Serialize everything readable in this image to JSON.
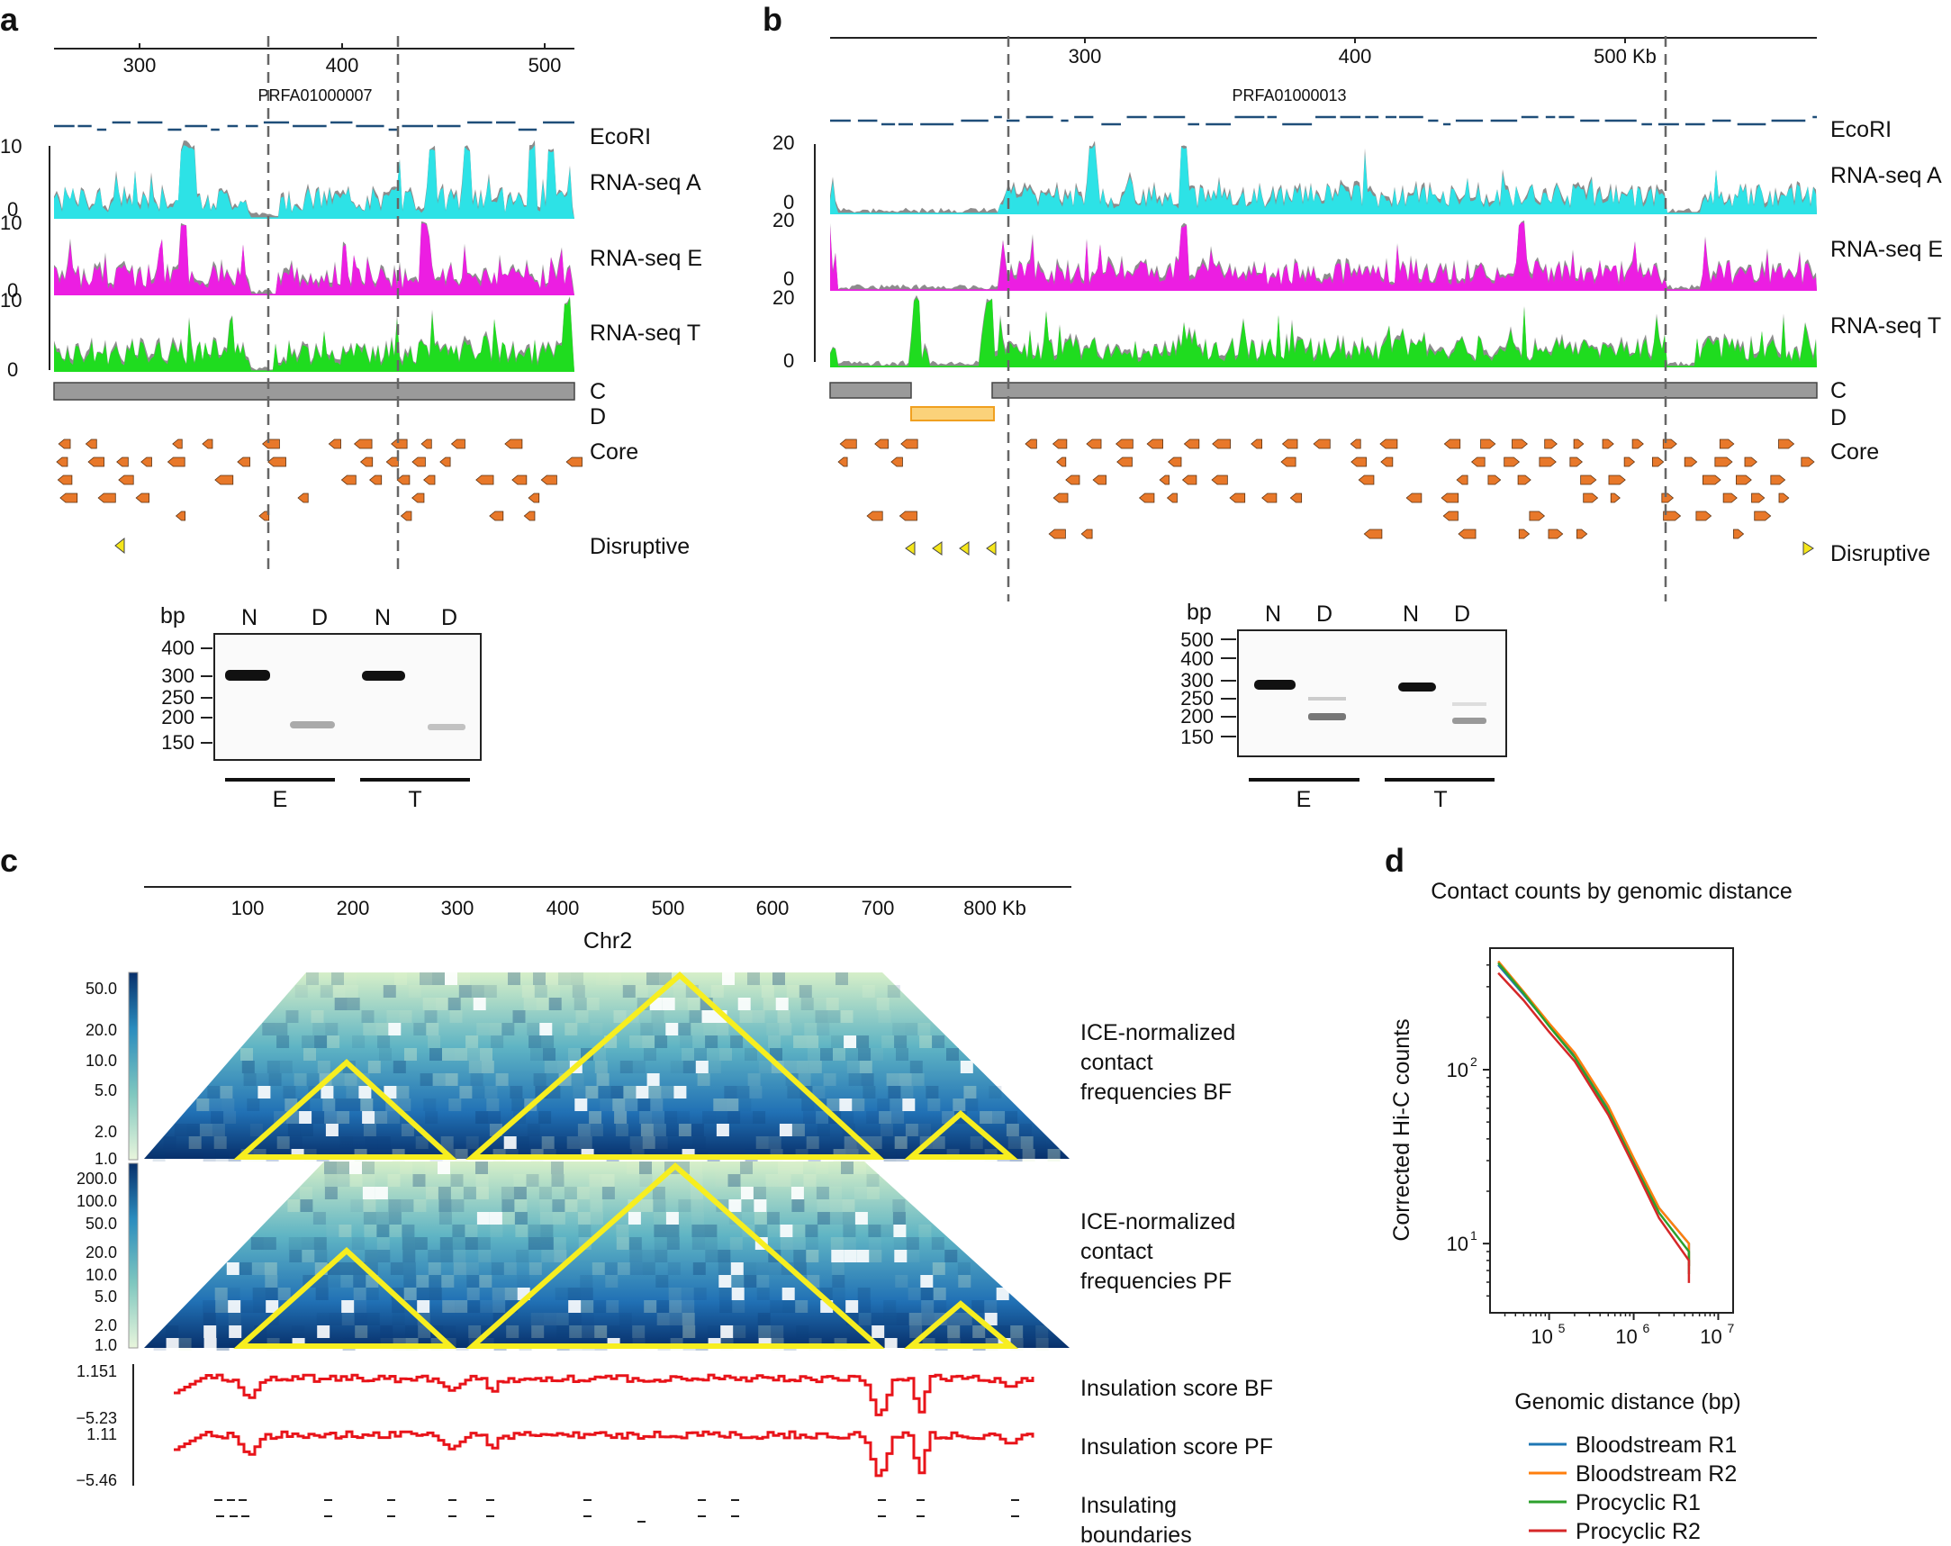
{
  "panel_labels": {
    "a": "a",
    "b": "b",
    "c": "c",
    "d": "d"
  },
  "colors": {
    "rna_a": "#2de2e6",
    "rna_e": "#ec1ee2",
    "rna_t": "#1fdc1f",
    "gray": "#8c8c8c",
    "orange": "#e8782a",
    "yellow": "#f5e61a",
    "dblue": "#1f4e79",
    "red": "#e8141a",
    "heat_dark": "#08306b",
    "heat_light": "#e8f5dc"
  },
  "panel_a": {
    "axis_ticks": [
      "300",
      "400",
      "500"
    ],
    "contig": "PRFA01000007",
    "tracks": {
      "ecori": "EcoRI",
      "rna_a": "RNA-seq A",
      "rna_e": "RNA-seq E",
      "rna_t": "RNA-seq T",
      "c": "C",
      "d": "D",
      "core": "Core",
      "disruptive": "Disruptive"
    },
    "y_max": "10",
    "y_min": "0",
    "gel": {
      "bp": "bp",
      "lanes": [
        "N",
        "D",
        "N",
        "D"
      ],
      "markers": [
        "400",
        "300",
        "250",
        "200",
        "150"
      ],
      "groups": [
        "E",
        "T"
      ]
    }
  },
  "panel_b": {
    "axis_ticks": [
      "300",
      "400",
      "500 Kb"
    ],
    "contig": "PRFA01000013",
    "tracks": {
      "ecori": "EcoRI",
      "rna_a": "RNA-seq A",
      "rna_e": "RNA-seq E",
      "rna_t": "RNA-seq T",
      "c": "C",
      "d": "D",
      "core": "Core",
      "disruptive": "Disruptive"
    },
    "y_max": "20",
    "y_min": "0",
    "gel": {
      "bp": "bp",
      "lanes": [
        "N",
        "D",
        "N",
        "D"
      ],
      "markers": [
        "500",
        "400",
        "300",
        "250",
        "200",
        "150"
      ],
      "groups": [
        "E",
        "T"
      ]
    }
  },
  "panel_c": {
    "axis_ticks": [
      "100",
      "200",
      "300",
      "400",
      "500",
      "600",
      "700",
      "800 Kb"
    ],
    "axis_label": "Chr2",
    "cbar_bf": [
      "50.0",
      "20.0",
      "10.0",
      "5.0",
      "2.0",
      "1.0"
    ],
    "cbar_pf": [
      "200.0",
      "100.0",
      "50.0",
      "20.0",
      "10.0",
      "5.0",
      "2.0",
      "1.0"
    ],
    "label_bf": [
      "ICE-normalized",
      "contact",
      "frequencies BF"
    ],
    "label_pf": [
      "ICE-normalized",
      "contact",
      "frequencies PF"
    ],
    "ins_bf": {
      "label": "Insulation score BF",
      "max": "1.151",
      "min": "−5.23"
    },
    "ins_pf": {
      "label": "Insulation score PF",
      "max": "1.11",
      "min": "−5.46"
    },
    "boundaries": [
      "Insulating",
      "boundaries"
    ]
  },
  "panel_d": {
    "chart_data": {
      "type": "line",
      "title": "Contact counts by genomic distance",
      "xlabel": "Genomic distance (bp)",
      "ylabel": "Corrected Hi-C counts",
      "x_scale": "log",
      "y_scale": "log",
      "x_ticks": [
        "10",
        "10",
        "10"
      ],
      "x_tick_exponents": [
        "5",
        "6",
        "7"
      ],
      "y_ticks": [
        "10",
        "10"
      ],
      "y_tick_exponents": [
        "2",
        "1"
      ],
      "xlim": [
        20000,
        15000000
      ],
      "ylim": [
        4,
        500
      ],
      "series": [
        {
          "name": "Bloodstream R1",
          "color": "#1f77b4",
          "x": [
            25000,
            50000,
            100000,
            200000,
            500000,
            1000000,
            2000000,
            4500000
          ],
          "y": [
            400,
            270,
            180,
            120,
            60,
            30,
            16,
            10
          ]
        },
        {
          "name": "Bloodstream R2",
          "color": "#ff7f0e",
          "x": [
            25000,
            50000,
            100000,
            200000,
            500000,
            1000000,
            2000000,
            4500000
          ],
          "y": [
            420,
            280,
            185,
            125,
            62,
            31,
            16,
            10
          ]
        },
        {
          "name": "Procyclic R1",
          "color": "#2ca02c",
          "x": [
            25000,
            50000,
            100000,
            200000,
            500000,
            1000000,
            2000000,
            4500000
          ],
          "y": [
            410,
            275,
            178,
            118,
            58,
            29,
            15,
            9
          ]
        },
        {
          "name": "Procyclic R2",
          "color": "#d62728",
          "x": [
            25000,
            50000,
            100000,
            200000,
            500000,
            1000000,
            2000000,
            4500000
          ],
          "y": [
            360,
            250,
            165,
            112,
            55,
            28,
            14,
            8
          ]
        }
      ]
    }
  }
}
